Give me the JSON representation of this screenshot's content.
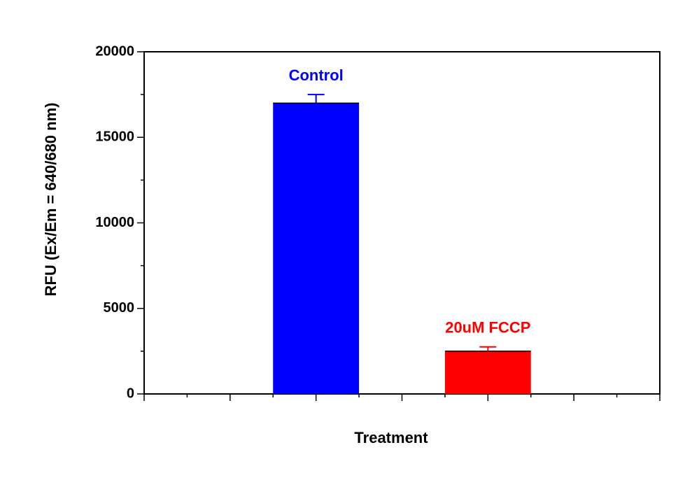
{
  "chart_data": {
    "type": "bar",
    "categories": [
      "Control",
      "20uM FCCP"
    ],
    "values": [
      17000,
      2500
    ],
    "errors": [
      500,
      250
    ],
    "colors": [
      "#0000ff",
      "#ff0000"
    ],
    "xlabel": "Treatment",
    "ylabel": "RFU (Ex/Em = 640/680 nm)",
    "ylim": [
      0,
      20000
    ],
    "yticks": [
      0,
      5000,
      10000,
      15000,
      20000
    ],
    "grid": false
  }
}
